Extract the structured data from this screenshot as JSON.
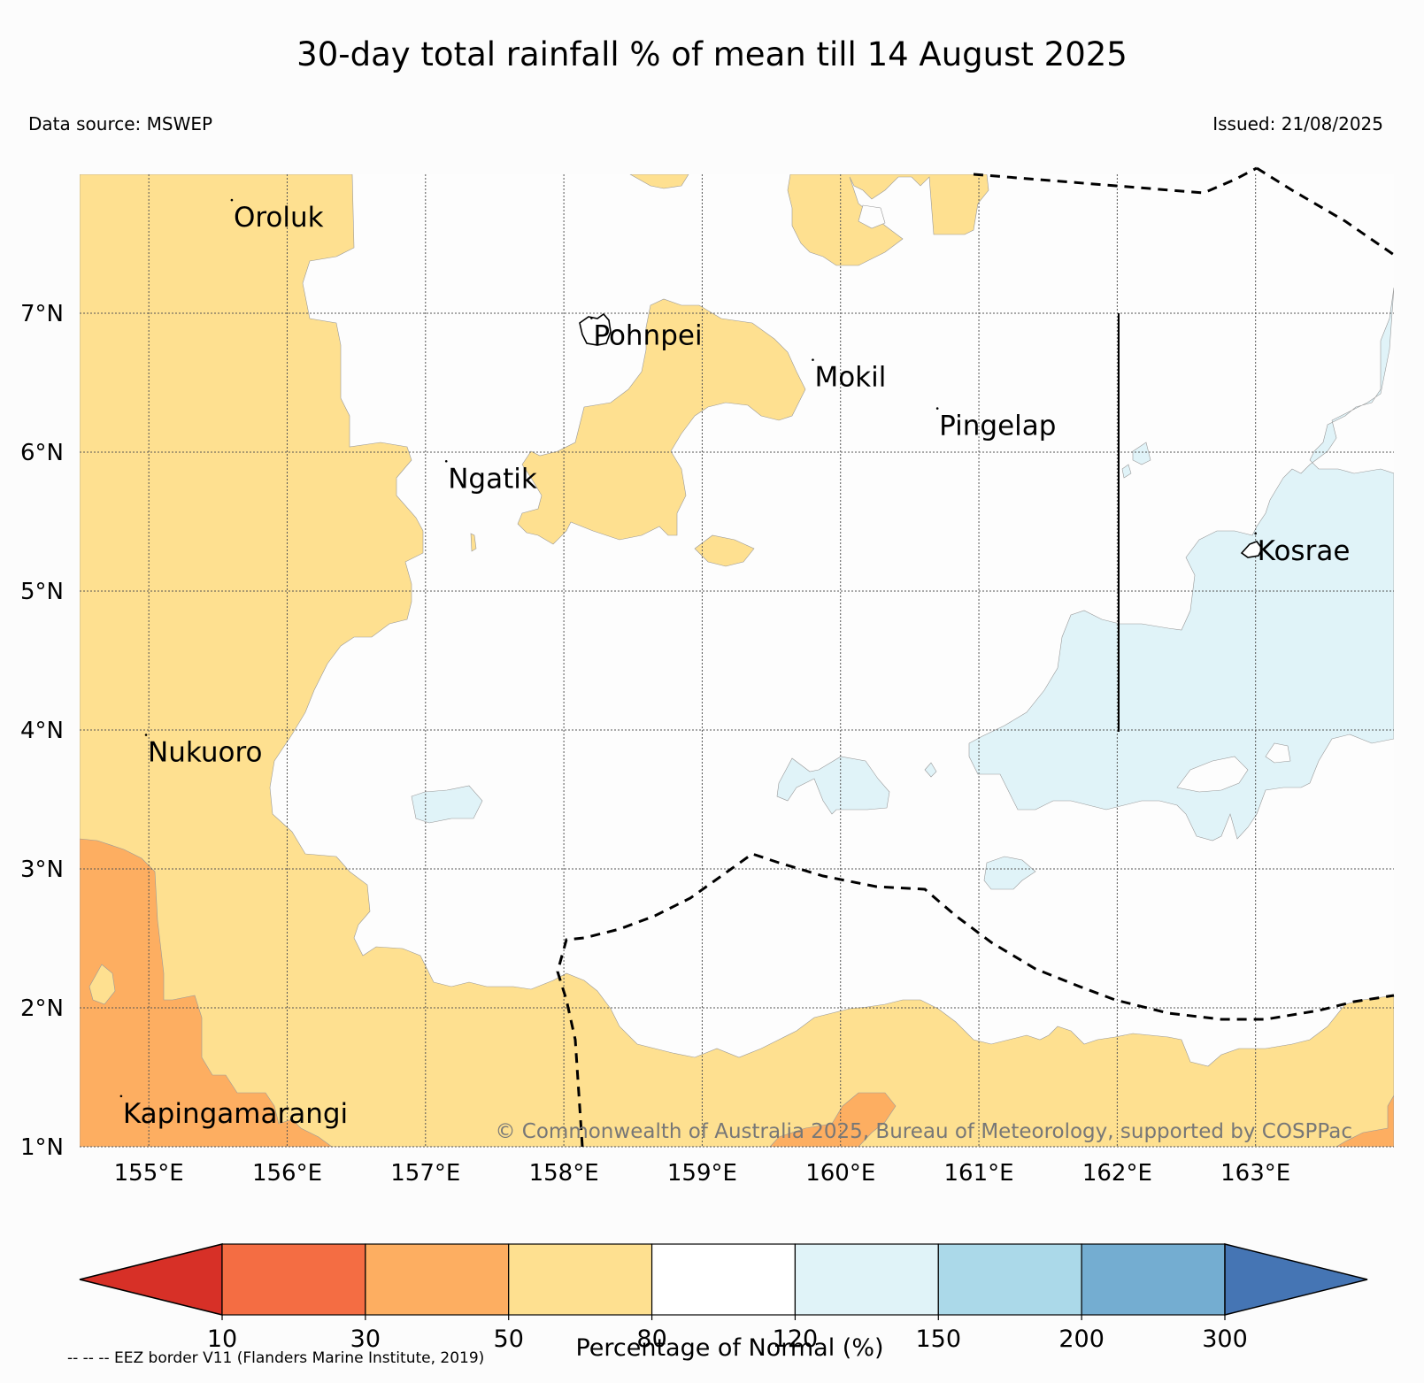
{
  "title": "30-day total rainfall % of mean till 14 August 2025",
  "data_source": "Data source: MSWEP",
  "issued": "Issued: 21/08/2025",
  "copyright": "© Commonwealth of Australia 2025, Bureau of Meteorology, supported by COSPPac",
  "eez_note": "-- -- -- EEZ border V11 (Flanders Marine Institute, 2019)",
  "map": {
    "lon_range": [
      154.5,
      164
    ],
    "lat_range": [
      1,
      8
    ],
    "lat_ticks": [
      {
        "value": 7,
        "label": "7°N"
      },
      {
        "value": 6,
        "label": "6°N"
      },
      {
        "value": 5,
        "label": "5°N"
      },
      {
        "value": 4,
        "label": "4°N"
      },
      {
        "value": 3,
        "label": "3°N"
      },
      {
        "value": 2,
        "label": "2°N"
      },
      {
        "value": 1,
        "label": "1°N"
      }
    ],
    "lon_ticks": [
      {
        "value": 155,
        "label": "155°E"
      },
      {
        "value": 156,
        "label": "156°E"
      },
      {
        "value": 157,
        "label": "157°E"
      },
      {
        "value": 158,
        "label": "158°E"
      },
      {
        "value": 159,
        "label": "159°E"
      },
      {
        "value": 160,
        "label": "160°E"
      },
      {
        "value": 161,
        "label": "161°E"
      },
      {
        "value": 162,
        "label": "162°E"
      },
      {
        "value": 163,
        "label": "163°E"
      }
    ],
    "places": [
      {
        "name": "Oroluk",
        "lon": 155.6,
        "lat": 7.7
      },
      {
        "name": "Pohnpei",
        "lon": 158.2,
        "lat": 6.85
      },
      {
        "name": "Mokil",
        "lon": 159.8,
        "lat": 6.55
      },
      {
        "name": "Pingelap",
        "lon": 160.7,
        "lat": 6.2
      },
      {
        "name": "Ngatik",
        "lon": 157.15,
        "lat": 5.82
      },
      {
        "name": "Kosrae",
        "lon": 163.0,
        "lat": 5.3
      },
      {
        "name": "Nukuoro",
        "lon": 154.98,
        "lat": 3.85
      },
      {
        "name": "Kapingamarangi",
        "lon": 154.8,
        "lat": 1.25
      }
    ]
  },
  "colorbar": {
    "title": "Percentage of Normal (%)",
    "bounds": [
      "10",
      "30",
      "50",
      "80",
      "120",
      "150",
      "200",
      "300"
    ],
    "colors": [
      "#d73027",
      "#f46d43",
      "#fdae61",
      "#fee090",
      "#ffffff",
      "#e0f3f8",
      "#abd9e9",
      "#74add1",
      "#4575b4"
    ]
  },
  "palette": {
    "below_50": "#fdae61",
    "50_80": "#fee090",
    "120_150": "#e0f3f8"
  }
}
